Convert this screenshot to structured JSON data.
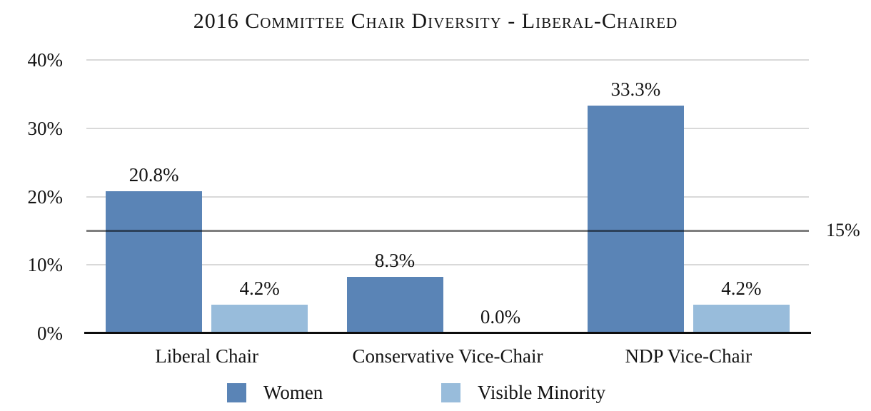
{
  "chart_data": {
    "type": "bar",
    "title": "2016 Committee Chair Diversity - Liberal-Chaired",
    "categories": [
      "Liberal Chair",
      "Conservative Vice-Chair",
      "NDP Vice-Chair"
    ],
    "series": [
      {
        "name": "Women",
        "color": "#5a84b6",
        "values": [
          20.8,
          8.3,
          33.3
        ],
        "value_labels": [
          "20.8%",
          "8.3%",
          "33.3%"
        ]
      },
      {
        "name": "Visible Minority",
        "color": "#98bcdb",
        "values": [
          4.2,
          0.0,
          4.2
        ],
        "value_labels": [
          "4.2%",
          "0.0%",
          "4.2%"
        ]
      }
    ],
    "xlabel": "",
    "ylabel": "",
    "ylim": [
      0,
      40
    ],
    "yticks": [
      0,
      10,
      20,
      30,
      40
    ],
    "ytick_labels": [
      "0%",
      "10%",
      "20%",
      "30%",
      "40%"
    ],
    "grid": true,
    "legend_position": "bottom",
    "reference_line": {
      "value": 15,
      "label": "15%",
      "color": "#7f7f7f"
    }
  },
  "colors": {
    "background": "#ffffff",
    "gridline": "#d9d9d9",
    "axis_line": "#0d0d0d",
    "text": "#141414"
  }
}
